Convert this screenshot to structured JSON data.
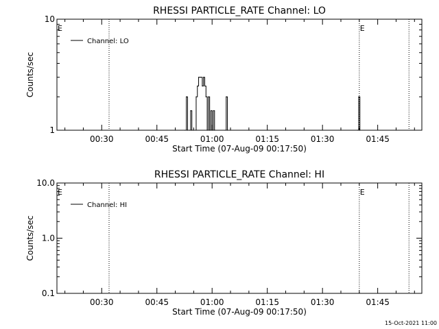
{
  "chart_data": [
    {
      "type": "line",
      "title": "RHESSI PARTICLE_RATE Channel: LO",
      "xlabel": "Start Time (07-Aug-09 00:17:50)",
      "ylabel": "Counts/sec",
      "y_scale": "log",
      "ylim": [
        1,
        10
      ],
      "y_ticks": [
        1,
        10
      ],
      "y_tick_labels": [
        "1",
        "10"
      ],
      "xlim": [
        "00:17:50",
        "01:57:00"
      ],
      "x_ticks": [
        "00:30",
        "00:45",
        "01:00",
        "01:15",
        "01:30",
        "01:45"
      ],
      "grid": false,
      "legend": {
        "placement": "top-left",
        "entries": [
          "Channel: LO"
        ]
      },
      "event_markers": [
        {
          "time": "00:17:50",
          "label": "E",
          "line": false
        },
        {
          "time": "00:32:00",
          "label": "",
          "line": true
        },
        {
          "time": "01:40:00",
          "label": "E",
          "line": true
        },
        {
          "time": "01:53:30",
          "label": "",
          "line": true
        }
      ],
      "series": [
        {
          "name": "Channel: LO",
          "x": [
            "00:52:40",
            "00:53:00",
            "00:53:20",
            "00:53:50",
            "00:54:10",
            "00:54:30",
            "00:54:50",
            "00:55:40",
            "00:56:00",
            "00:56:20",
            "00:56:40",
            "00:57:00",
            "00:57:20",
            "00:57:40",
            "00:58:00",
            "00:58:20",
            "00:58:40",
            "00:59:00",
            "00:59:20",
            "00:59:40",
            "01:00:00",
            "01:00:20",
            "01:00:40",
            "01:03:30",
            "01:03:50",
            "01:04:10",
            "01:39:30",
            "01:39:50",
            "01:40:10"
          ],
          "y": [
            1,
            2,
            1,
            1,
            1.5,
            1,
            1,
            2,
            2.5,
            3,
            3,
            3,
            2.5,
            3,
            2.5,
            2,
            1,
            2,
            1,
            1.5,
            1,
            1.5,
            1,
            1,
            2,
            1,
            1,
            2,
            1
          ]
        }
      ]
    },
    {
      "type": "line",
      "title": "RHESSI PARTICLE_RATE Channel: HI",
      "xlabel": "Start Time (07-Aug-09 00:17:50)",
      "ylabel": "Counts/sec",
      "y_scale": "log",
      "ylim": [
        0.1,
        10
      ],
      "y_ticks": [
        0.1,
        1,
        10
      ],
      "y_tick_labels": [
        "0.1",
        "1.0",
        "10.0"
      ],
      "xlim": [
        "00:17:50",
        "01:57:00"
      ],
      "x_ticks": [
        "00:30",
        "00:45",
        "01:00",
        "01:15",
        "01:30",
        "01:45"
      ],
      "grid": false,
      "legend": {
        "placement": "top-left",
        "entries": [
          "Channel: HI"
        ]
      },
      "event_markers": [
        {
          "time": "00:17:50",
          "label": "E",
          "line": false
        },
        {
          "time": "00:32:00",
          "label": "",
          "line": true
        },
        {
          "time": "01:40:00",
          "label": "E",
          "line": true
        },
        {
          "time": "01:53:30",
          "label": "",
          "line": true
        }
      ],
      "series": [
        {
          "name": "Channel: HI",
          "x": [],
          "y": []
        }
      ]
    }
  ],
  "footer": {
    "timestamp": "15-Oct-2021 11:00"
  }
}
